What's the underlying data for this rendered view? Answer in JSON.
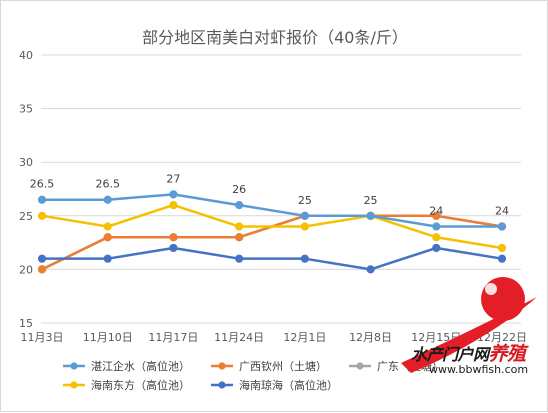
{
  "chart_data": {
    "type": "line",
    "title": "部分地区南美白对虾报价（40条/斤）",
    "categories": [
      "11月3日",
      "11月10日",
      "11月17日",
      "11月24日",
      "12月1日",
      "12月8日",
      "12月15日",
      "12月22日"
    ],
    "ylim": [
      15,
      40
    ],
    "yticks": [
      15,
      20,
      25,
      30,
      35,
      40
    ],
    "grid": true,
    "legend_position": "bottom",
    "series": [
      {
        "name": "湛江企水（高位池）",
        "color": "#5b9bd5",
        "values": [
          26.5,
          26.5,
          27,
          26,
          25,
          25,
          24,
          24
        ],
        "labels": [
          "26.5",
          "26.5",
          "27",
          "26",
          "25",
          "25",
          "24",
          "24"
        ]
      },
      {
        "name": "广西钦州（土塘）",
        "color": "#ed7d31",
        "values": [
          20,
          23,
          23,
          23,
          25,
          25,
          25,
          24
        ]
      },
      {
        "name": "广东（土塘）",
        "color": "#a5a5a5",
        "values": [
          20,
          23,
          23,
          23,
          25,
          25,
          25,
          24
        ]
      },
      {
        "name": "海南东方（高位池）",
        "color": "#f5c000",
        "values": [
          25,
          24,
          26,
          24,
          24,
          25,
          23,
          22
        ]
      },
      {
        "name": "海南琼海（高位池）",
        "color": "#4472c4",
        "values": [
          21,
          21,
          22,
          21,
          21,
          20,
          22,
          21
        ]
      }
    ]
  },
  "watermark": {
    "brand_black": "水产门户网",
    "brand_red": "养殖",
    "url": "www.bbwfish.com"
  }
}
